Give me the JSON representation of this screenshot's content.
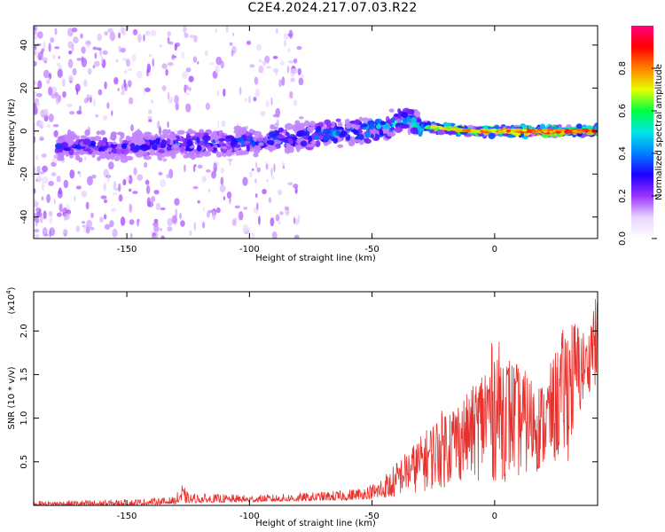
{
  "title": "C2E4.2024.217.07.03.R22",
  "chart_data": [
    {
      "type": "heatmap",
      "xlabel": "Height of straight line (km)",
      "ylabel": "Frequency (Hz)",
      "xlim": [
        -188,
        42
      ],
      "ylim": [
        -50,
        49
      ],
      "x_ticks": [
        -150,
        -100,
        -50,
        0
      ],
      "y_ticks": [
        -40,
        -20,
        0,
        20,
        40
      ],
      "colorbar": {
        "label": "Normalized spectral amplitude",
        "range": [
          0,
          1
        ],
        "ticks": [
          0.0,
          0.2,
          0.4,
          0.6,
          0.8
        ],
        "colormap": [
          "#ffffff",
          "#e8d4ff",
          "#9a33ff",
          "#1e00ff",
          "#0080ff",
          "#00e6e6",
          "#00ff40",
          "#e6ff00",
          "#ff8000",
          "#ff0000",
          "#ff0080"
        ]
      },
      "trend": {
        "x": [
          -175,
          -150,
          -125,
          -100,
          -75,
          -50,
          -35,
          -28,
          -20,
          -10,
          0,
          10,
          20,
          40
        ],
        "center_freq": [
          -7,
          -7,
          -6,
          -5,
          -2,
          1,
          5,
          2,
          1,
          0,
          0,
          0,
          0,
          0
        ],
        "peak_amplitude": [
          0.35,
          0.35,
          0.4,
          0.4,
          0.45,
          0.5,
          0.55,
          0.65,
          0.75,
          0.8,
          0.8,
          0.85,
          0.9,
          0.95
        ]
      }
    },
    {
      "type": "line",
      "xlabel": "Height of straight line (km)",
      "ylabel": "SNR (10 * v/v)",
      "y_multiplier": "(x10",
      "y_multiplier_exp": "4",
      "y_multiplier_close": ")",
      "xlim": [
        -188,
        42
      ],
      "ylim": [
        0,
        2.45
      ],
      "x_ticks": [
        -150,
        -100,
        -50,
        0
      ],
      "y_ticks": [
        0.5,
        1.0,
        1.5,
        2.0
      ],
      "series": [
        {
          "color": "#e8302c",
          "envelope_x": [
            -188,
            -150,
            -130,
            -128,
            -125,
            -100,
            -80,
            -60,
            -50,
            -40,
            -30,
            -20,
            -10,
            0,
            10,
            20,
            30,
            35,
            38,
            40,
            42
          ],
          "envelope_max": [
            0.05,
            0.07,
            0.1,
            0.28,
            0.14,
            0.12,
            0.14,
            0.18,
            0.25,
            0.5,
            0.8,
            1.15,
            1.3,
            1.95,
            1.6,
            1.4,
            2.2,
            2.1,
            1.9,
            2.4,
            2.35
          ],
          "envelope_min": [
            0.0,
            0.0,
            0.02,
            0.03,
            0.03,
            0.04,
            0.05,
            0.06,
            0.08,
            0.1,
            0.15,
            0.2,
            0.3,
            0.25,
            0.3,
            0.4,
            0.5,
            1.0,
            1.3,
            1.3,
            1.4
          ]
        }
      ]
    }
  ]
}
